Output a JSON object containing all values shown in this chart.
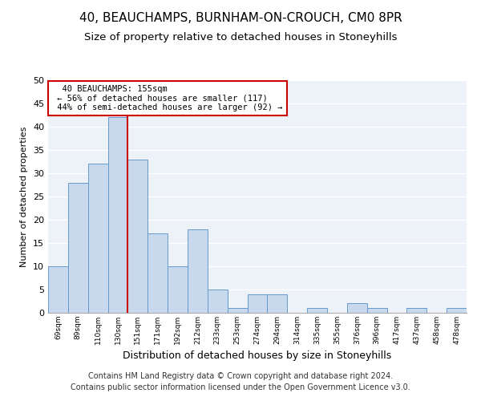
{
  "title1": "40, BEAUCHAMPS, BURNHAM-ON-CROUCH, CM0 8PR",
  "title2": "Size of property relative to detached houses in Stoneyhills",
  "xlabel": "Distribution of detached houses by size in Stoneyhills",
  "ylabel": "Number of detached properties",
  "categories": [
    "69sqm",
    "89sqm",
    "110sqm",
    "130sqm",
    "151sqm",
    "171sqm",
    "192sqm",
    "212sqm",
    "233sqm",
    "253sqm",
    "274sqm",
    "294sqm",
    "314sqm",
    "335sqm",
    "355sqm",
    "376sqm",
    "396sqm",
    "417sqm",
    "437sqm",
    "458sqm",
    "478sqm"
  ],
  "values": [
    10,
    28,
    32,
    42,
    33,
    17,
    10,
    18,
    5,
    1,
    4,
    4,
    0,
    1,
    0,
    2,
    1,
    0,
    1,
    0,
    1
  ],
  "bar_color": "#c8d9ee",
  "bar_edge_color": "#6699cc",
  "ref_line_index": 4,
  "ref_line_color": "#cc0000",
  "annotation_text": "  40 BEAUCHAMPS: 155sqm\n ← 56% of detached houses are smaller (117)\n 44% of semi-detached houses are larger (92) →",
  "annotation_box_color": "#ffffff",
  "annotation_box_edge": "#cc0000",
  "ylim": [
    0,
    50
  ],
  "yticks": [
    0,
    5,
    10,
    15,
    20,
    25,
    30,
    35,
    40,
    45,
    50
  ],
  "footer": "Contains HM Land Registry data © Crown copyright and database right 2024.\nContains public sector information licensed under the Open Government Licence v3.0.",
  "bg_color": "#edf2f9",
  "grid_color": "#ffffff",
  "title1_fontsize": 11,
  "title2_fontsize": 9.5,
  "xlabel_fontsize": 9,
  "ylabel_fontsize": 8,
  "footer_fontsize": 7
}
